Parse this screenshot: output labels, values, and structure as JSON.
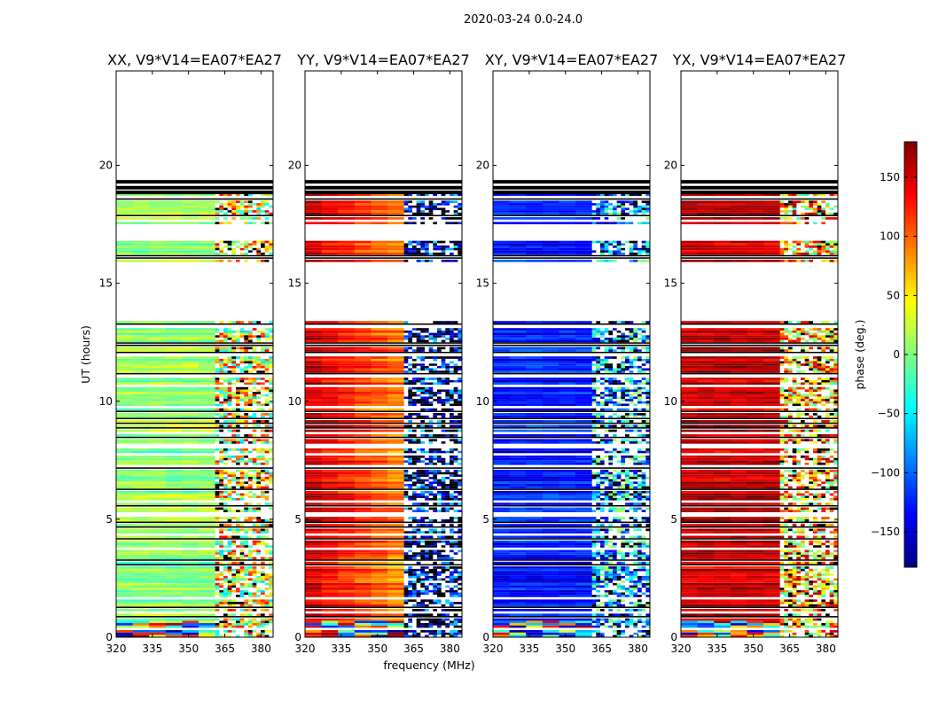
{
  "chart_data": {
    "type": "heatmap",
    "suptitle": "2020-03-24 0.0-24.0",
    "panels": [
      {
        "title": "XX, V9*V14=EA07*EA27",
        "pol": "XX",
        "base_phase": 5,
        "high_band_phase": 40
      },
      {
        "title": "YY, V9*V14=EA07*EA27",
        "pol": "YY",
        "base_phase": 150,
        "high_band_phase": -150
      },
      {
        "title": "XY, V9*V14=EA07*EA27",
        "pol": "XY",
        "base_phase": -130,
        "high_band_phase": -80
      },
      {
        "title": "YX, V9*V14=EA07*EA27",
        "pol": "YX",
        "base_phase": 155,
        "high_band_phase": 70
      }
    ],
    "x": {
      "label": "frequency (MHz)",
      "range": [
        320,
        385
      ],
      "ticks": [
        320,
        335,
        350,
        365,
        380
      ],
      "tick_labels": [
        "320",
        "335",
        "350",
        "365",
        "380"
      ],
      "rfi_band_start": 361
    },
    "y": {
      "label": "UT (hours)",
      "range": [
        0,
        24
      ],
      "ticks": [
        0,
        5,
        10,
        15,
        20
      ],
      "tick_labels": [
        "0",
        "5",
        "10",
        "15",
        "20"
      ]
    },
    "colorbar": {
      "label": "phase (deg.)",
      "range": [
        -180,
        180
      ],
      "ticks": [
        -150,
        -100,
        -50,
        0,
        50,
        100,
        150
      ],
      "tick_labels": [
        "−150",
        "−100",
        "−50",
        "0",
        "50",
        "100",
        "150"
      ],
      "colormap": "jet"
    },
    "data_intervals_hours": [
      [
        0.0,
        13.4
      ],
      [
        15.9,
        16.8
      ],
      [
        17.5,
        18.8
      ]
    ],
    "empty_hours": [
      [
        13.4,
        15.9
      ],
      [
        19.5,
        24.0
      ]
    ],
    "thick_black_lines_hours": [
      19.3,
      19.05,
      18.85
    ]
  }
}
